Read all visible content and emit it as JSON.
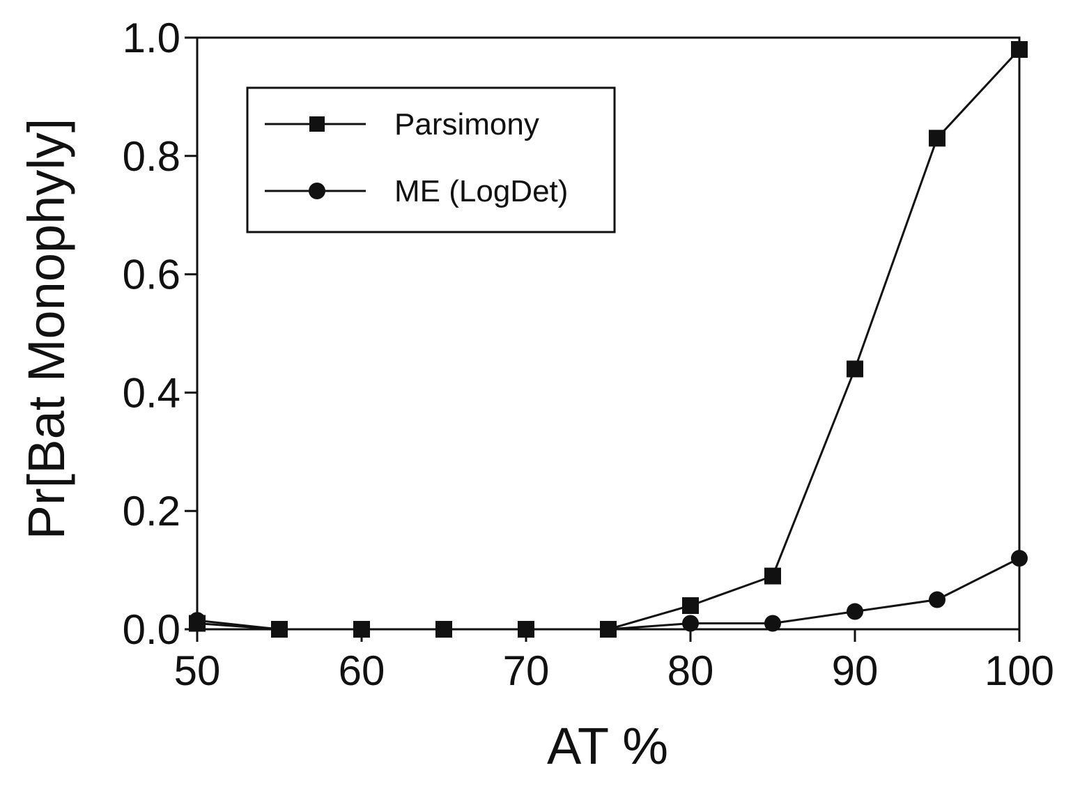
{
  "chart_data": {
    "type": "line",
    "xlabel": "AT %",
    "ylabel": "Pr[Bat Monophyly]",
    "xlim": [
      50,
      100
    ],
    "ylim": [
      0,
      1
    ],
    "xticks": [
      "50",
      "60",
      "70",
      "80",
      "90",
      "100"
    ],
    "yticks": [
      "0.0",
      "0.2",
      "0.4",
      "0.6",
      "0.8",
      "1.0"
    ],
    "grid": false,
    "legend_position": "top-left",
    "series": [
      {
        "name": "Parsimony",
        "marker": "square",
        "color": "#111111",
        "x": [
          50,
          55,
          60,
          65,
          70,
          75,
          80,
          85,
          90,
          95,
          100
        ],
        "y": [
          0.01,
          0.0,
          0.0,
          0.0,
          0.0,
          0.0,
          0.04,
          0.09,
          0.44,
          0.83,
          0.98
        ]
      },
      {
        "name": "ME (LogDet)",
        "marker": "circle",
        "color": "#111111",
        "x": [
          50,
          55,
          60,
          65,
          70,
          75,
          80,
          85,
          90,
          95,
          100
        ],
        "y": [
          0.015,
          0.0,
          0.0,
          0.0,
          0.0,
          0.0,
          0.01,
          0.01,
          0.03,
          0.05,
          0.12
        ]
      }
    ]
  }
}
